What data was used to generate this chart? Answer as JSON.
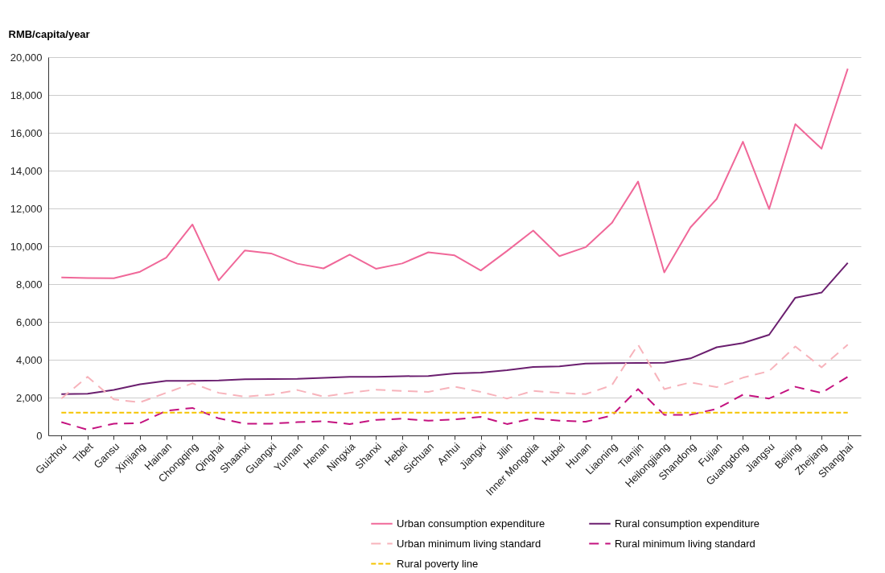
{
  "chart_data": {
    "type": "line",
    "ylabel": "RMB/capita/year",
    "categories": [
      "Guizhou",
      "Tibet",
      "Gansu",
      "Xinjiang",
      "Hainan",
      "Chongqing",
      "Qinghai",
      "Shaanxi",
      "Guangxi",
      "Yunnan",
      "Henan",
      "Ningxia",
      "Shanxi",
      "Hebei",
      "Sichuan",
      "Anhui",
      "Jiangxi",
      "Jilin",
      "Inner Mongolia",
      "Hubei",
      "Hunan",
      "Liaoning",
      "Tianjin",
      "Heilongjiang",
      "Shandong",
      "Fujian",
      "Guangdong",
      "Jiangsu",
      "Beijing",
      "Zhejiang",
      "Shanghai"
    ],
    "series": [
      {
        "name": "Urban consumption expenditure",
        "color": "#f06899",
        "line_style": "solid",
        "values": [
          8350,
          8320,
          8310,
          8650,
          9400,
          11150,
          8200,
          9780,
          9620,
          9080,
          8830,
          9560,
          8810,
          9090,
          9680,
          9520,
          8720,
          9750,
          10830,
          9480,
          9950,
          11230,
          13420,
          8620,
          11000,
          12500,
          15530,
          11970,
          16460,
          15160,
          19390
        ]
      },
      {
        "name": "Rural consumption expenditure",
        "color": "#6b1f6f",
        "line_style": "solid",
        "values": [
          2180,
          2200,
          2400,
          2700,
          2880,
          2880,
          2900,
          2970,
          2980,
          2990,
          3040,
          3100,
          3100,
          3130,
          3140,
          3280,
          3320,
          3450,
          3620,
          3650,
          3800,
          3820,
          3830,
          3840,
          4070,
          4660,
          4880,
          5320,
          7280,
          7550,
          9120
        ]
      },
      {
        "name": "Urban minimum living standard",
        "color": "#f7b3bb",
        "line_style": "dashed",
        "values": [
          1950,
          3100,
          1900,
          1750,
          2250,
          2750,
          2250,
          2050,
          2150,
          2400,
          2050,
          2250,
          2420,
          2350,
          2300,
          2580,
          2300,
          1950,
          2350,
          2250,
          2180,
          2650,
          4800,
          2450,
          2800,
          2550,
          3050,
          3400,
          4700,
          3600,
          4800
        ]
      },
      {
        "name": "Rural minimum living standard",
        "color": "#c4127f",
        "line_style": "dashed",
        "values": [
          700,
          300,
          620,
          650,
          1300,
          1450,
          900,
          620,
          620,
          700,
          750,
          600,
          820,
          880,
          780,
          840,
          980,
          600,
          900,
          780,
          720,
          1050,
          2450,
          1090,
          1090,
          1400,
          2150,
          1950,
          2570,
          2250,
          3100
        ]
      },
      {
        "name": "Rural poverty line",
        "color": "#f5c400",
        "line_style": "dotted",
        "values": [
          1200,
          1200,
          1200,
          1200,
          1200,
          1200,
          1200,
          1200,
          1200,
          1200,
          1200,
          1200,
          1200,
          1200,
          1200,
          1200,
          1200,
          1200,
          1200,
          1200,
          1200,
          1200,
          1200,
          1200,
          1200,
          1200,
          1200,
          1200,
          1200,
          1200,
          1200
        ]
      }
    ],
    "ylim": [
      0,
      20000
    ],
    "yticks": [
      0,
      {
        "value": 2000,
        "label": "2,000"
      },
      {
        "value": 4000,
        "label": "4,000"
      },
      {
        "value": 6000,
        "label": "6,000"
      },
      {
        "value": 8000,
        "label": "8,000"
      },
      {
        "value": 10000,
        "label": "10,000"
      },
      {
        "value": 12000,
        "label": "12,000"
      },
      {
        "value": 14000,
        "label": "14,000"
      },
      {
        "value": 16000,
        "label": "16,000"
      },
      {
        "value": 18000,
        "label": "18,000"
      },
      {
        "value": 20000,
        "label": "20,000"
      }
    ],
    "grid": "y",
    "legend": "bottom right"
  }
}
